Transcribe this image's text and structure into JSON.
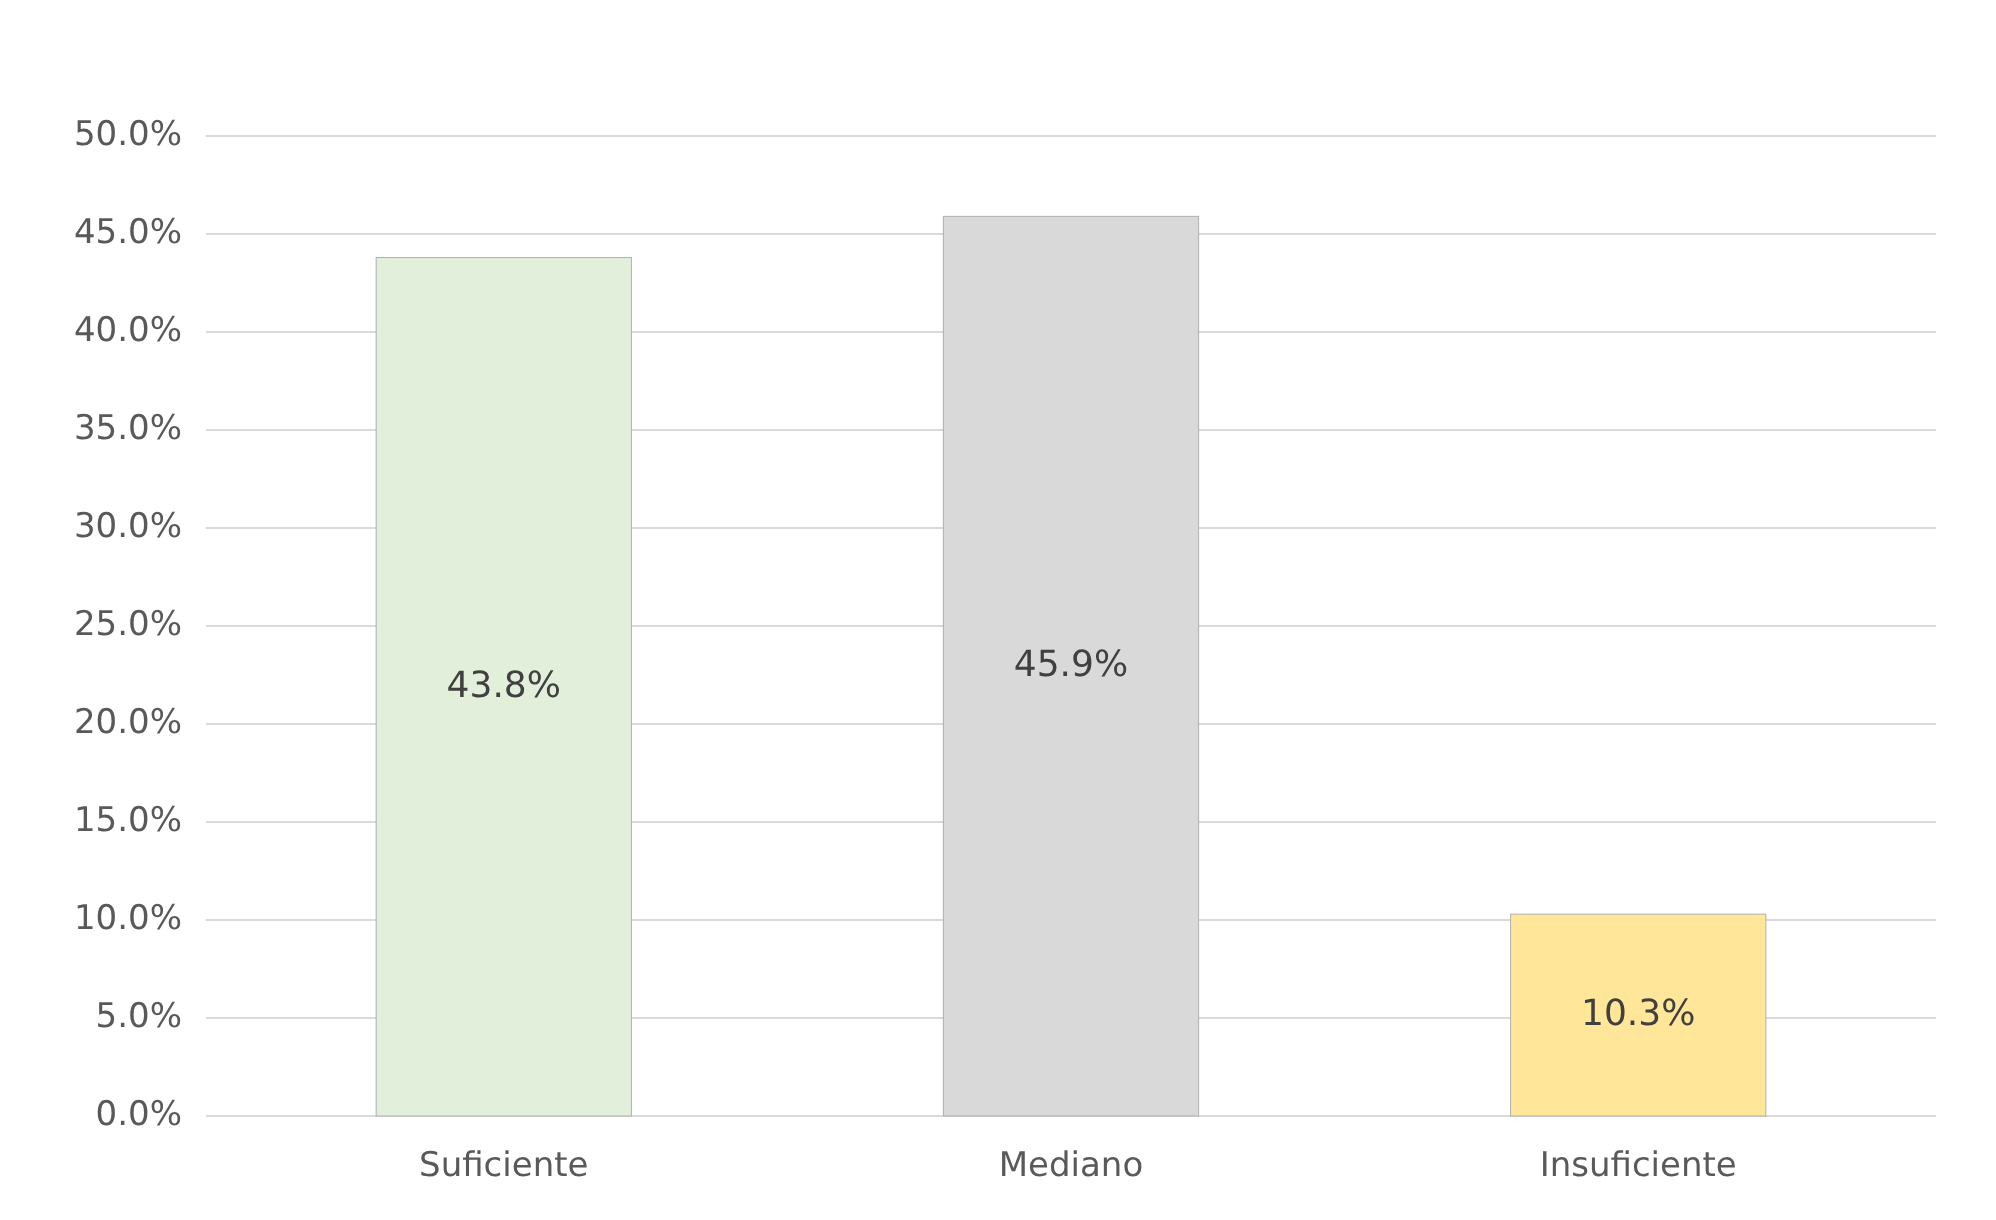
{
  "chart_data": {
    "type": "bar",
    "categories": [
      "Suficiente",
      "Mediano",
      "Insuficiente"
    ],
    "values": [
      43.8,
      45.9,
      10.3
    ],
    "colors": [
      "#e2efda",
      "#d9d9d9",
      "#ffe699"
    ],
    "value_labels": [
      "43.8%",
      "45.9%",
      "10.3%"
    ],
    "ylim": [
      0,
      50
    ],
    "yticks": [
      {
        "value": 0,
        "label": "0.0%"
      },
      {
        "value": 5,
        "label": "5.0%"
      },
      {
        "value": 10,
        "label": "10.0%"
      },
      {
        "value": 15,
        "label": "15.0%"
      },
      {
        "value": 20,
        "label": "20.0%"
      },
      {
        "value": 25,
        "label": "25.0%"
      },
      {
        "value": 30,
        "label": "30.0%"
      },
      {
        "value": 35,
        "label": "35.0%"
      },
      {
        "value": 40,
        "label": "40.0%"
      },
      {
        "value": 45,
        "label": "45.0%"
      },
      {
        "value": 50,
        "label": "50.0%"
      }
    ],
    "grid": "y"
  }
}
